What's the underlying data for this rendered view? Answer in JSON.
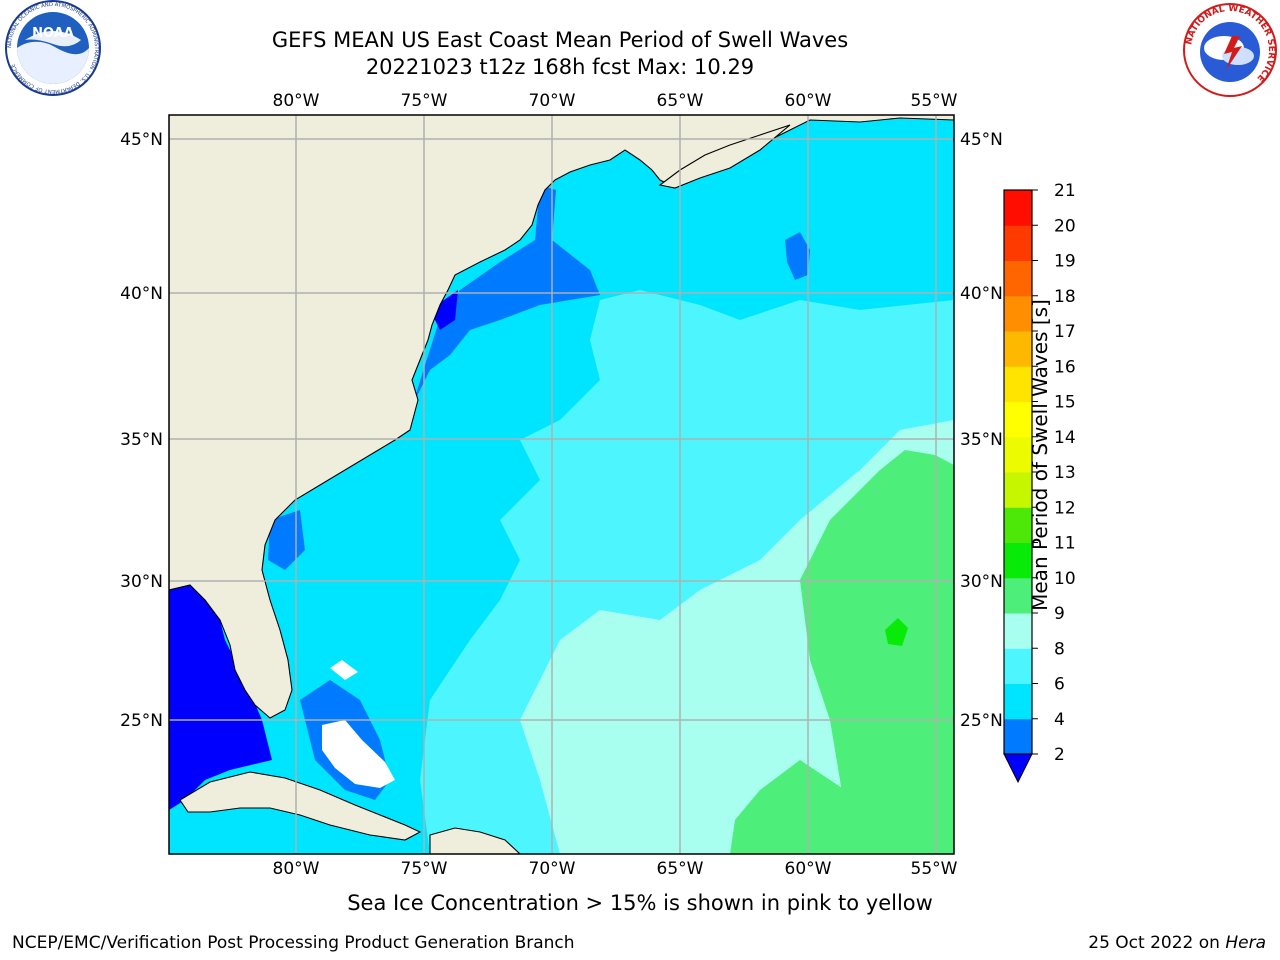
{
  "title": {
    "line1": "GEFS MEAN US East Coast Mean Period of Swell Waves",
    "line2": "20221023 t12z 168h fcst   Max: 10.29"
  },
  "map": {
    "lon_labels": [
      "80°W",
      "75°W",
      "70°W",
      "65°W",
      "60°W",
      "55°W"
    ],
    "lat_labels": [
      "45°N",
      "40°N",
      "35°N",
      "30°N",
      "25°N"
    ],
    "lon_range": [
      -85,
      -54
    ],
    "lat_range": [
      20,
      46
    ],
    "field": "Mean Period of Swell Waves",
    "max_value": 10.29,
    "colors": {
      "land": "#efeedc",
      "grid": "#b0b0b0",
      "coast": "#000000"
    }
  },
  "colorbar": {
    "label": "Mean Period of Swell Waves [s]",
    "levels": [
      2,
      4,
      6,
      8,
      9,
      10,
      11,
      12,
      13,
      14,
      15,
      16,
      17,
      18,
      19,
      20,
      21
    ],
    "level_labels": [
      "2",
      "4",
      "6",
      "8",
      "9",
      "10",
      "11",
      "12",
      "13",
      "14",
      "15",
      "16",
      "17",
      "18",
      "19",
      "20",
      "21"
    ],
    "under_color": "#0000ff",
    "colors": [
      "#007bff",
      "#00e5ff",
      "#4df6ff",
      "#a8fff0",
      "#4dee7a",
      "#08ea08",
      "#4ee808",
      "#c6f700",
      "#ecfb00",
      "#ffff00",
      "#ffe400",
      "#ffb800",
      "#ff8e00",
      "#ff6600",
      "#ff3a00",
      "#ff0e00"
    ]
  },
  "ice_note": "Sea Ice Concentration > 15% is shown in pink to yellow",
  "footer": {
    "left": "NCEP/EMC/Verification Post Processing Product Generation Branch",
    "right_date": "25 Oct 2022 on",
    "right_host": "Hera"
  },
  "logos": {
    "left_icon": "noaa-logo",
    "right_icon": "nws-logo",
    "noaa_text": "NOAA",
    "noaa_ring": "NATIONAL OCEANIC AND ATMOSPHERIC ADMINISTRATION · U.S. DEPARTMENT OF COMMERCE",
    "nws_ring": "NATIONAL WEATHER SERVICE"
  }
}
